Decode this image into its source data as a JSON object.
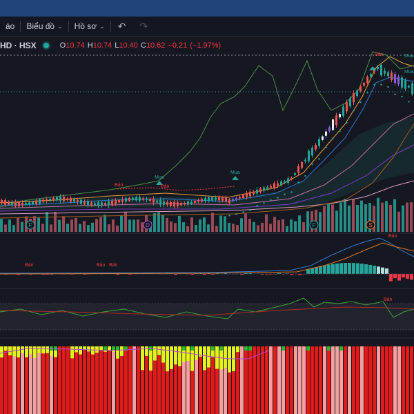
{
  "toolbar": {
    "partial_label": "áo",
    "chart_label": "Biểu đồ",
    "profile_label": "Hồ sơ",
    "undo_icon": "undo-icon",
    "redo_icon": "redo-icon"
  },
  "legend": {
    "symbol": "HD · HSX",
    "status_color": "#26a69a",
    "o_label": "O",
    "o_value": "10.74",
    "h_label": "H",
    "h_value": "10.74",
    "l_label": "L",
    "l_value": "10.40",
    "c_label": "C",
    "c_value": "10.62",
    "change": "−0.21",
    "change_pct": "(−1.97%)",
    "down_color": "#f23645"
  },
  "signals": {
    "buy_label": "Mua",
    "sell_label": "Bán"
  },
  "event_markers": [
    "F",
    "D",
    "F",
    "S"
  ],
  "colors": {
    "up": "#26a69a",
    "down": "#ef5350",
    "volume_up": "#26a69a",
    "volume_down": "#b05262",
    "accent": "#2962ff"
  },
  "chart_data": [
    {
      "type": "line",
      "title": "",
      "series": [
        {
          "values": [
            10.0,
            10.2,
            10.1,
            10.3,
            10.2,
            10.4,
            10.3,
            10.5,
            10.6,
            10.4,
            10.6,
            10.5,
            10.4,
            10.5,
            10.6,
            10.5,
            10.6,
            10.5,
            10.7,
            10.6,
            10.7,
            10.6,
            10.8,
            10.9,
            11.1,
            11.4,
            11.8,
            12.3,
            12.9,
            13.4,
            13.8,
            14.1,
            13.7,
            13.2,
            13.0
          ]
        }
      ]
    }
  ]
}
